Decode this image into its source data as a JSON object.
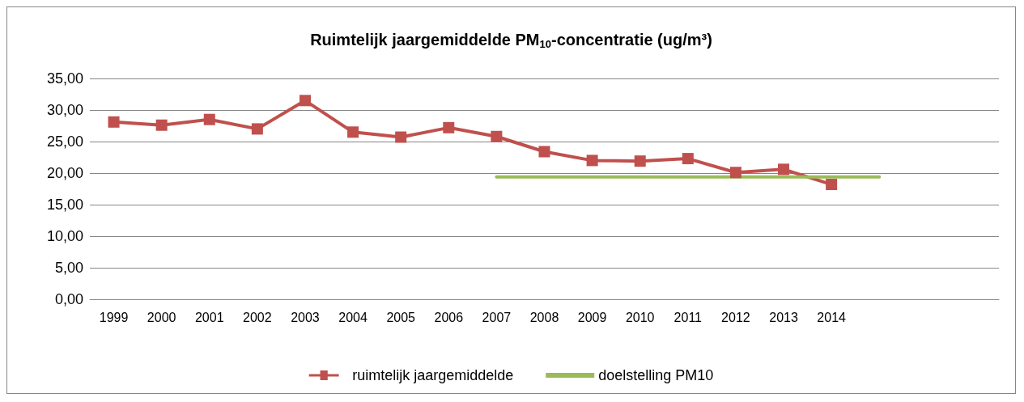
{
  "chart_data": {
    "type": "line",
    "title": "Ruimtelijk jaargemiddelde PM$_{10}$-concentratie (ug/m³)",
    "categories": [
      "1999",
      "2000",
      "2001",
      "2002",
      "2003",
      "2004",
      "2005",
      "2006",
      "2007",
      "2008",
      "2009",
      "2010",
      "2011",
      "2012",
      "2013",
      "2014",
      null,
      null,
      null
    ],
    "series": [
      {
        "name": "ruimtelijk jaargemiddelde",
        "color": "#c0504d",
        "marker": "square",
        "values": [
          28.1,
          27.6,
          28.5,
          27.0,
          31.5,
          26.5,
          25.7,
          27.2,
          25.8,
          23.4,
          22.0,
          21.9,
          22.3,
          20.1,
          20.6,
          18.2,
          null,
          null,
          null
        ]
      },
      {
        "name": "doelstelling PM10",
        "color": "#9bbb59",
        "marker": "none",
        "values": [
          null,
          null,
          null,
          null,
          null,
          null,
          null,
          null,
          19.4,
          19.4,
          19.4,
          19.4,
          19.4,
          19.4,
          19.4,
          19.4,
          19.4,
          null,
          null
        ]
      }
    ],
    "ylim": [
      0,
      35
    ],
    "yticks": [
      {
        "value": 0,
        "label": "0,00"
      },
      {
        "value": 5,
        "label": "5,00"
      },
      {
        "value": 10,
        "label": "10,00"
      },
      {
        "value": 15,
        "label": "15,00"
      },
      {
        "value": 20,
        "label": "20,00"
      },
      {
        "value": 25,
        "label": "25,00"
      },
      {
        "value": 30,
        "label": "30,00"
      },
      {
        "value": 35,
        "label": "35,00"
      }
    ],
    "grid": "y",
    "legend": "bottom",
    "line_style": "solid"
  }
}
